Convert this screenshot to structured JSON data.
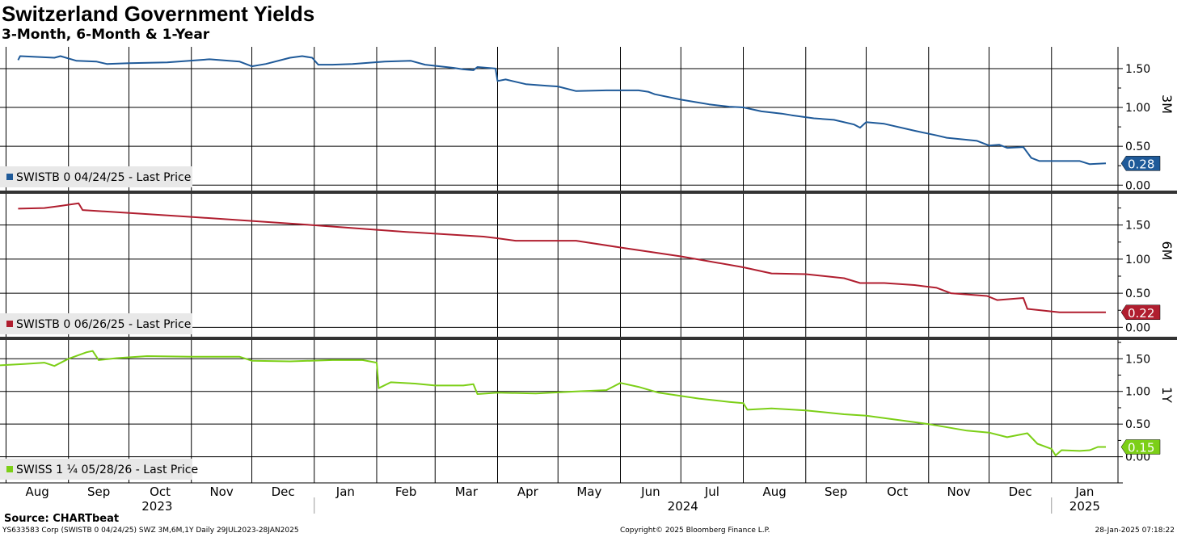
{
  "header": {
    "title": "Switzerland Government Yields",
    "subtitle": "3-Month, 6-Month & 1-Year"
  },
  "footer": {
    "source": "Source: CHARTbeat",
    "left": "YS633583 Corp (SWISTB 0 04/24/25) SWZ 3M,6M,1Y  Daily 29JUL2023-28JAN2025",
    "center": "Copyright© 2025 Bloomberg Finance L.P.",
    "right": "28-Jan-2025 07:18:22"
  },
  "colors": {
    "3M": "#1f5a99",
    "6M": "#b01e2f",
    "1Y": "#7ccf17"
  },
  "chart_data": [
    {
      "type": "line",
      "panel_label": "3M",
      "legend": "SWISTB 0 04/24/25 - Last Price",
      "last_value_label": "0.28",
      "yticks": [
        "1.50",
        "1.00",
        "0.50",
        "0.00"
      ],
      "ylim": [
        -0.07,
        1.78
      ],
      "series": [
        {
          "name": "SWISTB 0 04/24/25 - Last Price",
          "points": [
            [
              "2023-08-07",
              1.61
            ],
            [
              "2023-08-08",
              1.66
            ],
            [
              "2023-08-25",
              1.64
            ],
            [
              "2023-08-28",
              1.66
            ],
            [
              "2023-09-05",
              1.6
            ],
            [
              "2023-09-15",
              1.59
            ],
            [
              "2023-09-20",
              1.56
            ],
            [
              "2023-10-01",
              1.57
            ],
            [
              "2023-10-20",
              1.58
            ],
            [
              "2023-11-10",
              1.62
            ],
            [
              "2023-11-25",
              1.59
            ],
            [
              "2023-12-01",
              1.53
            ],
            [
              "2023-12-08",
              1.56
            ],
            [
              "2023-12-20",
              1.64
            ],
            [
              "2023-12-26",
              1.66
            ],
            [
              "2023-12-31",
              1.64
            ],
            [
              "2024-01-03",
              1.55
            ],
            [
              "2024-01-10",
              1.55
            ],
            [
              "2024-01-20",
              1.56
            ],
            [
              "2024-02-05",
              1.59
            ],
            [
              "2024-02-18",
              1.6
            ],
            [
              "2024-02-25",
              1.55
            ],
            [
              "2024-03-10",
              1.51
            ],
            [
              "2024-03-15",
              1.49
            ],
            [
              "2024-03-20",
              1.48
            ],
            [
              "2024-03-22",
              1.52
            ],
            [
              "2024-03-31",
              1.5
            ],
            [
              "2024-04-01",
              1.34
            ],
            [
              "2024-04-05",
              1.36
            ],
            [
              "2024-04-10",
              1.33
            ],
            [
              "2024-04-15",
              1.3
            ],
            [
              "2024-04-25",
              1.28
            ],
            [
              "2024-05-01",
              1.27
            ],
            [
              "2024-05-10",
              1.21
            ],
            [
              "2024-05-25",
              1.22
            ],
            [
              "2024-06-10",
              1.22
            ],
            [
              "2024-06-15",
              1.2
            ],
            [
              "2024-06-18",
              1.17
            ],
            [
              "2024-07-01",
              1.1
            ],
            [
              "2024-07-15",
              1.04
            ],
            [
              "2024-07-25",
              1.01
            ],
            [
              "2024-08-01",
              1.0
            ],
            [
              "2024-08-10",
              0.95
            ],
            [
              "2024-08-20",
              0.92
            ],
            [
              "2024-08-25",
              0.9
            ],
            [
              "2024-09-05",
              0.86
            ],
            [
              "2024-09-15",
              0.84
            ],
            [
              "2024-09-25",
              0.78
            ],
            [
              "2024-09-28",
              0.74
            ],
            [
              "2024-10-01",
              0.81
            ],
            [
              "2024-10-10",
              0.79
            ],
            [
              "2024-10-25",
              0.7
            ],
            [
              "2024-11-05",
              0.64
            ],
            [
              "2024-11-10",
              0.61
            ],
            [
              "2024-11-25",
              0.57
            ],
            [
              "2024-12-01",
              0.51
            ],
            [
              "2024-12-06",
              0.52
            ],
            [
              "2024-12-10",
              0.48
            ],
            [
              "2024-12-18",
              0.49
            ],
            [
              "2024-12-22",
              0.35
            ],
            [
              "2024-12-26",
              0.31
            ],
            [
              "2025-01-05",
              0.31
            ],
            [
              "2025-01-15",
              0.31
            ],
            [
              "2025-01-20",
              0.27
            ],
            [
              "2025-01-28",
              0.28
            ]
          ]
        }
      ]
    },
    {
      "type": "line",
      "panel_label": "6M",
      "legend": "SWISTB 0 06/26/25 - Last Price",
      "last_value_label": "0.22",
      "yticks": [
        "1.50",
        "1.00",
        "0.50",
        "0.00"
      ],
      "ylim": [
        -0.15,
        1.97
      ],
      "series": [
        {
          "name": "SWISTB 0 06/26/25 - Last Price",
          "points": [
            [
              "2023-08-07",
              1.74
            ],
            [
              "2023-08-20",
              1.75
            ],
            [
              "2023-08-28",
              1.78
            ],
            [
              "2023-09-06",
              1.82
            ],
            [
              "2023-09-08",
              1.72
            ],
            [
              "2023-11-01",
              1.62
            ],
            [
              "2023-12-31",
              1.5
            ],
            [
              "2024-02-15",
              1.4
            ],
            [
              "2024-03-25",
              1.33
            ],
            [
              "2024-03-31",
              1.31
            ],
            [
              "2024-04-10",
              1.27
            ],
            [
              "2024-05-10",
              1.27
            ],
            [
              "2024-06-01",
              1.17
            ],
            [
              "2024-07-01",
              1.04
            ],
            [
              "2024-08-01",
              0.88
            ],
            [
              "2024-08-15",
              0.79
            ],
            [
              "2024-09-01",
              0.78
            ],
            [
              "2024-09-20",
              0.72
            ],
            [
              "2024-09-28",
              0.65
            ],
            [
              "2024-10-10",
              0.65
            ],
            [
              "2024-10-25",
              0.62
            ],
            [
              "2024-11-05",
              0.58
            ],
            [
              "2024-11-12",
              0.5
            ],
            [
              "2024-11-30",
              0.46
            ],
            [
              "2024-12-05",
              0.4
            ],
            [
              "2024-12-18",
              0.43
            ],
            [
              "2024-12-20",
              0.27
            ],
            [
              "2025-01-05",
              0.22
            ],
            [
              "2025-01-28",
              0.22
            ]
          ]
        }
      ]
    },
    {
      "type": "line",
      "panel_label": "1Y",
      "legend": "SWISS 1 ¼ 05/28/26 - Last Price",
      "last_value_label": "0.15",
      "yticks": [
        "1.50",
        "1.00",
        "0.50",
        "0.00"
      ],
      "ylim": [
        -0.4,
        1.8
      ],
      "series": [
        {
          "name": "SWISS 1 ¼ 05/28/26 - Last Price",
          "points": [
            [
              "2023-07-29",
              1.4
            ],
            [
              "2023-08-10",
              1.42
            ],
            [
              "2023-08-20",
              1.44
            ],
            [
              "2023-08-25",
              1.39
            ],
            [
              "2023-09-01",
              1.5
            ],
            [
              "2023-09-10",
              1.6
            ],
            [
              "2023-09-13",
              1.62
            ],
            [
              "2023-09-16",
              1.48
            ],
            [
              "2023-09-25",
              1.51
            ],
            [
              "2023-10-10",
              1.54
            ],
            [
              "2023-11-01",
              1.53
            ],
            [
              "2023-11-25",
              1.53
            ],
            [
              "2023-12-01",
              1.47
            ],
            [
              "2023-12-20",
              1.46
            ],
            [
              "2024-01-10",
              1.48
            ],
            [
              "2024-01-25",
              1.48
            ],
            [
              "2024-02-01",
              1.44
            ],
            [
              "2024-02-02",
              1.05
            ],
            [
              "2024-02-08",
              1.14
            ],
            [
              "2024-02-20",
              1.12
            ],
            [
              "2024-03-01",
              1.09
            ],
            [
              "2024-03-15",
              1.09
            ],
            [
              "2024-03-20",
              1.11
            ],
            [
              "2024-03-22",
              0.96
            ],
            [
              "2024-04-01",
              0.98
            ],
            [
              "2024-04-20",
              0.97
            ],
            [
              "2024-05-10",
              1.0
            ],
            [
              "2024-05-25",
              1.02
            ],
            [
              "2024-06-01",
              1.13
            ],
            [
              "2024-06-10",
              1.07
            ],
            [
              "2024-06-20",
              0.98
            ],
            [
              "2024-07-10",
              0.89
            ],
            [
              "2024-07-25",
              0.84
            ],
            [
              "2024-08-01",
              0.82
            ],
            [
              "2024-08-03",
              0.72
            ],
            [
              "2024-08-15",
              0.74
            ],
            [
              "2024-09-01",
              0.71
            ],
            [
              "2024-09-20",
              0.65
            ],
            [
              "2024-10-01",
              0.63
            ],
            [
              "2024-10-20",
              0.55
            ],
            [
              "2024-11-01",
              0.5
            ],
            [
              "2024-11-20",
              0.4
            ],
            [
              "2024-12-01",
              0.37
            ],
            [
              "2024-12-10",
              0.3
            ],
            [
              "2024-12-20",
              0.36
            ],
            [
              "2024-12-25",
              0.2
            ],
            [
              "2025-01-01",
              0.12
            ],
            [
              "2025-01-03",
              0.02
            ],
            [
              "2025-01-06",
              0.1
            ],
            [
              "2025-01-15",
              0.09
            ],
            [
              "2025-01-20",
              0.1
            ],
            [
              "2025-01-24",
              0.15
            ],
            [
              "2025-01-28",
              0.15
            ]
          ]
        }
      ]
    }
  ],
  "x_axis": {
    "months": [
      "Aug",
      "Sep",
      "Oct",
      "Nov",
      "Dec",
      "Jan",
      "Feb",
      "Mar",
      "Apr",
      "May",
      "Jun",
      "Jul",
      "Aug",
      "Sep",
      "Oct",
      "Nov",
      "Dec",
      "Jan"
    ],
    "month_starts": [
      "2023-08-01",
      "2023-09-01",
      "2023-10-01",
      "2023-11-01",
      "2023-12-01",
      "2024-01-01",
      "2024-02-01",
      "2024-03-01",
      "2024-04-01",
      "2024-05-01",
      "2024-06-01",
      "2024-07-01",
      "2024-08-01",
      "2024-09-01",
      "2024-10-01",
      "2024-11-01",
      "2024-12-01",
      "2025-01-01"
    ],
    "years": [
      {
        "label": "2023",
        "from": "2023-07-29",
        "to": "2024-01-01"
      },
      {
        "label": "2024",
        "from": "2024-01-01",
        "to": "2025-01-01"
      },
      {
        "label": "2025",
        "from": "2025-01-01",
        "to": "2025-02-03"
      }
    ],
    "range": [
      "2023-07-29",
      "2025-02-03"
    ]
  }
}
